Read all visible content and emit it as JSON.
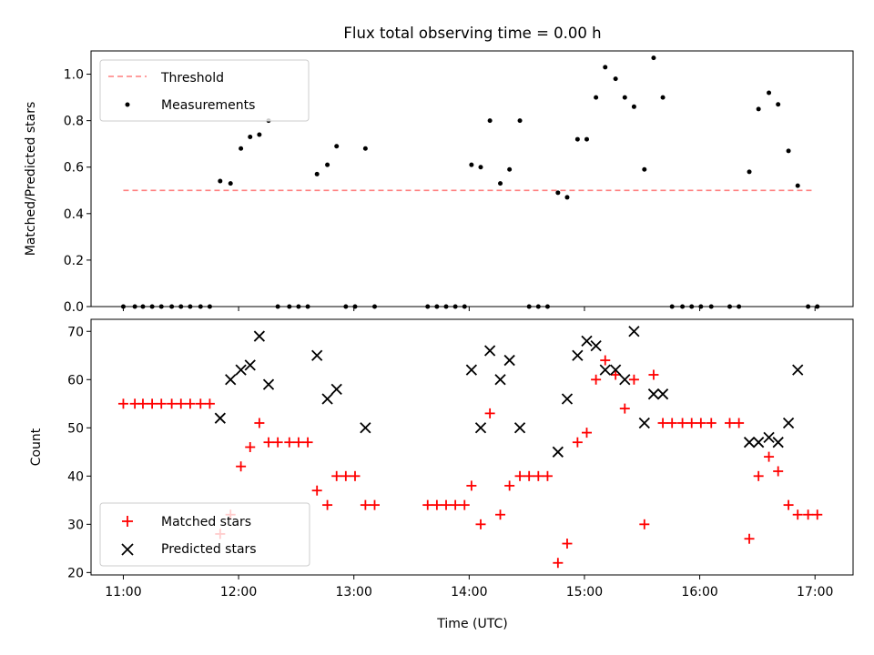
{
  "figure": {
    "title": "Flux total observing time = 0.00 h",
    "xlabel": "Time (UTC)",
    "xticks": [
      {
        "t": 11.0,
        "label": "11:00"
      },
      {
        "t": 12.0,
        "label": "12:00"
      },
      {
        "t": 13.0,
        "label": "13:00"
      },
      {
        "t": 14.0,
        "label": "14:00"
      },
      {
        "t": 15.0,
        "label": "15:00"
      },
      {
        "t": 16.0,
        "label": "16:00"
      },
      {
        "t": 17.0,
        "label": "17:00"
      }
    ],
    "xlim": [
      10.72,
      17.33
    ]
  },
  "chart_data": [
    {
      "type": "scatter",
      "ylabel": "Matched/Predicted stars",
      "ylim": [
        0,
        1.1
      ],
      "yticks": [
        "0.0",
        "0.2",
        "0.4",
        "0.6",
        "0.8",
        "1.0"
      ],
      "legend_position": "top-left",
      "threshold": {
        "name": "Threshold",
        "value": 0.5,
        "x_range": [
          11.0,
          17.0
        ],
        "color": "#ff7f7f"
      },
      "series": [
        {
          "name": "Measurements",
          "color": "#000000",
          "x": [
            11.0,
            11.1,
            11.17,
            11.25,
            11.33,
            11.42,
            11.5,
            11.58,
            11.67,
            11.75,
            11.84,
            11.93,
            12.02,
            12.1,
            12.18,
            12.26,
            12.34,
            12.44,
            12.52,
            12.6,
            12.68,
            12.77,
            12.85,
            12.93,
            13.01,
            13.1,
            13.18,
            13.64,
            13.72,
            13.8,
            13.88,
            13.96,
            14.02,
            14.1,
            14.18,
            14.27,
            14.35,
            14.44,
            14.52,
            14.6,
            14.68,
            14.77,
            14.85,
            14.94,
            15.02,
            15.1,
            15.18,
            15.27,
            15.35,
            15.43,
            15.52,
            15.6,
            15.68,
            15.76,
            15.85,
            15.93,
            16.01,
            16.1,
            16.26,
            16.34,
            16.43,
            16.51,
            16.6,
            16.68,
            16.77,
            16.85,
            16.94,
            17.02
          ],
          "y": [
            0,
            0,
            0,
            0,
            0,
            0,
            0,
            0,
            0,
            0,
            0.54,
            0.53,
            0.68,
            0.73,
            0.74,
            0.8,
            0,
            0,
            0,
            0,
            0.57,
            0.61,
            0.69,
            0,
            0,
            0.68,
            0,
            0,
            0,
            0,
            0,
            0,
            0.61,
            0.6,
            0.8,
            0.53,
            0.59,
            0.8,
            0,
            0,
            0,
            0.49,
            0.47,
            0.72,
            0.72,
            0.9,
            1.03,
            0.98,
            0.9,
            0.86,
            0.59,
            1.07,
            0.9,
            0,
            0,
            0,
            0,
            0,
            0,
            0,
            0.58,
            0.85,
            0.92,
            0.87,
            0.67,
            0.52,
            0,
            0
          ]
        }
      ]
    },
    {
      "type": "scatter",
      "ylabel": "Count",
      "ylim": [
        19.5,
        72.5
      ],
      "yticks": [
        "20",
        "30",
        "40",
        "50",
        "60",
        "70"
      ],
      "legend_position": "bottom-left",
      "series": [
        {
          "name": "Matched stars",
          "marker": "plus",
          "color": "#ff0000",
          "x": [
            11.0,
            11.1,
            11.17,
            11.25,
            11.33,
            11.42,
            11.5,
            11.58,
            11.67,
            11.75,
            11.84,
            11.93,
            12.02,
            12.1,
            12.18,
            12.26,
            12.34,
            12.44,
            12.52,
            12.6,
            12.68,
            12.77,
            12.85,
            12.93,
            13.01,
            13.1,
            13.18,
            13.64,
            13.72,
            13.8,
            13.88,
            13.96,
            14.02,
            14.1,
            14.18,
            14.27,
            14.35,
            14.44,
            14.52,
            14.6,
            14.68,
            14.77,
            14.85,
            14.94,
            15.02,
            15.1,
            15.18,
            15.27,
            15.35,
            15.43,
            15.52,
            15.6,
            15.68,
            15.76,
            15.85,
            15.93,
            16.01,
            16.1,
            16.26,
            16.34,
            16.43,
            16.51,
            16.6,
            16.68,
            16.77,
            16.85,
            16.94,
            17.02
          ],
          "y": [
            55,
            55,
            55,
            55,
            55,
            55,
            55,
            55,
            55,
            55,
            28,
            32,
            42,
            46,
            51,
            47,
            47,
            47,
            47,
            47,
            37,
            34,
            40,
            40,
            40,
            34,
            34,
            34,
            34,
            34,
            34,
            34,
            38,
            30,
            53,
            32,
            38,
            40,
            40,
            40,
            40,
            22,
            26,
            47,
            49,
            60,
            64,
            61,
            54,
            60,
            30,
            61,
            51,
            51,
            51,
            51,
            51,
            51,
            51,
            51,
            27,
            40,
            44,
            41,
            34,
            32,
            32,
            32
          ]
        },
        {
          "name": "Predicted stars",
          "marker": "x",
          "color": "#000000",
          "x": [
            11.84,
            11.93,
            12.02,
            12.1,
            12.18,
            12.26,
            12.68,
            12.77,
            12.85,
            13.1,
            14.02,
            14.1,
            14.18,
            14.27,
            14.35,
            14.44,
            14.77,
            14.85,
            14.94,
            15.02,
            15.1,
            15.18,
            15.27,
            15.35,
            15.43,
            15.52,
            15.6,
            15.68,
            16.43,
            16.51,
            16.6,
            16.68,
            16.77,
            16.85
          ],
          "y": [
            52,
            60,
            62,
            63,
            69,
            59,
            65,
            56,
            58,
            50,
            62,
            50,
            66,
            60,
            64,
            50,
            45,
            56,
            65,
            68,
            67,
            62,
            62,
            60,
            70,
            51,
            57,
            57,
            47,
            47,
            48,
            47,
            51,
            62
          ]
        }
      ]
    }
  ]
}
